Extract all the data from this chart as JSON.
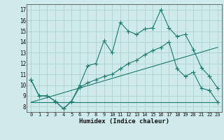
{
  "xlabel": "Humidex (Indice chaleur)",
  "bg_color": "#ceeaea",
  "grid_color": "#b0d0d0",
  "line_color": "#1a7a6e",
  "xlim": [
    -0.5,
    23.5
  ],
  "ylim": [
    7.5,
    17.5
  ],
  "xticks": [
    0,
    1,
    2,
    3,
    4,
    5,
    6,
    7,
    8,
    9,
    10,
    11,
    12,
    13,
    14,
    15,
    16,
    17,
    18,
    19,
    20,
    21,
    22,
    23
  ],
  "yticks": [
    8,
    9,
    10,
    11,
    12,
    13,
    14,
    15,
    16,
    17
  ],
  "line1_x": [
    0,
    1,
    2,
    3,
    4,
    5,
    6,
    7,
    8,
    9,
    10,
    11,
    12,
    13,
    14,
    15,
    16,
    17,
    18,
    19,
    20,
    21,
    22,
    23
  ],
  "line1_y": [
    10.5,
    9.0,
    9.0,
    8.5,
    7.8,
    8.5,
    10.0,
    11.8,
    12.0,
    14.1,
    13.0,
    15.8,
    15.0,
    14.7,
    15.2,
    15.3,
    17.0,
    15.3,
    14.5,
    14.7,
    13.3,
    11.6,
    10.8,
    9.7
  ],
  "line2_x": [
    0,
    1,
    2,
    3,
    4,
    5,
    6,
    7,
    8,
    9,
    10,
    11,
    12,
    13,
    14,
    15,
    16,
    17,
    18,
    19,
    20,
    21,
    22,
    23
  ],
  "line2_y": [
    10.5,
    9.0,
    9.0,
    8.5,
    7.8,
    8.5,
    9.8,
    10.2,
    10.5,
    10.8,
    11.0,
    11.5,
    12.0,
    12.3,
    12.8,
    13.2,
    13.5,
    14.0,
    11.5,
    10.8,
    11.2,
    9.7,
    9.5,
    8.4
  ],
  "line3_x": [
    0,
    23
  ],
  "line3_y": [
    8.4,
    8.4
  ],
  "line4_x": [
    0,
    23
  ],
  "line4_y": [
    8.4,
    13.5
  ]
}
